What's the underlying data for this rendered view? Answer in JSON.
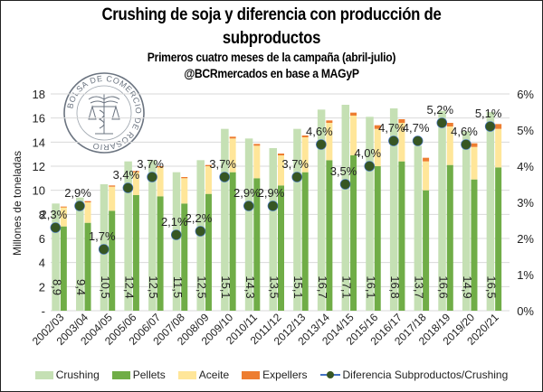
{
  "chart_data": {
    "type": "bar",
    "title": "Crushing de soja y diferencia con producción de subproductos",
    "title_line1": "Crushing de soja y diferencia con producción de",
    "title_line2": "subproductos",
    "subtitle": "Primeros cuatro meses de la campaña (abril-julio)",
    "source": "@BCRmercados en base a MAGyP",
    "ylabel": "Millones de toneladas",
    "ylabel_right": "",
    "xlabel": "",
    "ylim": [
      0,
      18
    ],
    "ylim_right": [
      0,
      6
    ],
    "y_ticks": [
      "-",
      "2",
      "4",
      "6",
      "8",
      "10",
      "12",
      "14",
      "16",
      "18"
    ],
    "y_ticks_right": [
      "0%",
      "1%",
      "2%",
      "3%",
      "4%",
      "5%",
      "6%"
    ],
    "grid": true,
    "legend_position": "bottom",
    "categories": [
      "2002/03",
      "2003/04",
      "2004/05",
      "2005/06",
      "2006/07",
      "2007/08",
      "2008/09",
      "2009/10",
      "2010/11",
      "2011/12",
      "2012/13",
      "2013/14",
      "2014/15",
      "2015/16",
      "2016/17",
      "2017/18",
      "2018/19",
      "2019/20",
      "2020/21"
    ],
    "series": [
      {
        "name": "Crushing",
        "type": "bar",
        "color": "#c5e0b4",
        "values": [
          8.9,
          9.4,
          10.5,
          12.4,
          12.5,
          11.5,
          12.5,
          15.1,
          14.3,
          13.5,
          15.1,
          16.7,
          17.1,
          16.1,
          16.8,
          13.7,
          16.6,
          14.9,
          16.5
        ],
        "labels": [
          "8,9",
          "9,4",
          "10,5",
          "12,4",
          "12,5",
          "11,5",
          "12,5",
          "15,1",
          "14,3",
          "13,5",
          "15,1",
          "16,7",
          "17,1",
          "16,1",
          "16,8",
          "13,7",
          "16,6",
          "14,9",
          "16,5"
        ]
      },
      {
        "name": "Pellets",
        "type": "stacked-bar",
        "color": "#70ad47",
        "values": [
          7.0,
          7.3,
          8.3,
          9.6,
          9.5,
          8.9,
          9.7,
          11.5,
          11.0,
          10.4,
          11.5,
          12.5,
          12.9,
          12.0,
          12.4,
          10.0,
          12.1,
          10.9,
          11.9
        ]
      },
      {
        "name": "Aceite",
        "type": "stacked-bar",
        "color": "#ffe699",
        "values": [
          1.6,
          1.7,
          2.0,
          1.9,
          2.4,
          2.1,
          2.3,
          2.8,
          2.7,
          2.5,
          2.9,
          3.1,
          3.3,
          3.1,
          3.2,
          2.4,
          3.2,
          2.7,
          3.2
        ]
      },
      {
        "name": "Expellers",
        "type": "stacked-bar",
        "color": "#ed7d31",
        "values": [
          0.05,
          0.1,
          0.1,
          0.1,
          0.1,
          0.1,
          0.1,
          0.15,
          0.15,
          0.15,
          0.15,
          0.2,
          0.25,
          0.3,
          0.3,
          0.3,
          0.3,
          0.3,
          0.4
        ]
      },
      {
        "name": "Diferencia Subproductos/Crushing",
        "type": "scatter-line",
        "axis": "right",
        "color": "#375623",
        "line_color": "#4472c4",
        "values": [
          2.3,
          2.9,
          1.7,
          3.4,
          3.7,
          2.1,
          2.2,
          3.7,
          2.9,
          2.9,
          3.7,
          4.6,
          3.5,
          4.0,
          4.7,
          4.7,
          5.2,
          4.6,
          5.1
        ],
        "labels": [
          "2,3%",
          "2,9%",
          "1,7%",
          "3,4%",
          "3,7%",
          "2,1%",
          "2,2%",
          "3,7%",
          "2,9%",
          "2,9%",
          "3,7%",
          "4,6%",
          "3,5%",
          "4,0%",
          "4,7%",
          "4,7%",
          "5,2%",
          "4,6%",
          "5,1%"
        ]
      }
    ]
  },
  "logo": {
    "text": "BOLSA DE COMERCIO DE ROSARIO"
  },
  "legend": [
    {
      "label": "Crushing",
      "color": "#c5e0b4"
    },
    {
      "label": "Pellets",
      "color": "#70ad47"
    },
    {
      "label": "Aceite",
      "color": "#ffe699"
    },
    {
      "label": "Expellers",
      "color": "#ed7d31"
    },
    {
      "label": "Diferencia Subproductos/Crushing",
      "color": "#375623"
    }
  ]
}
